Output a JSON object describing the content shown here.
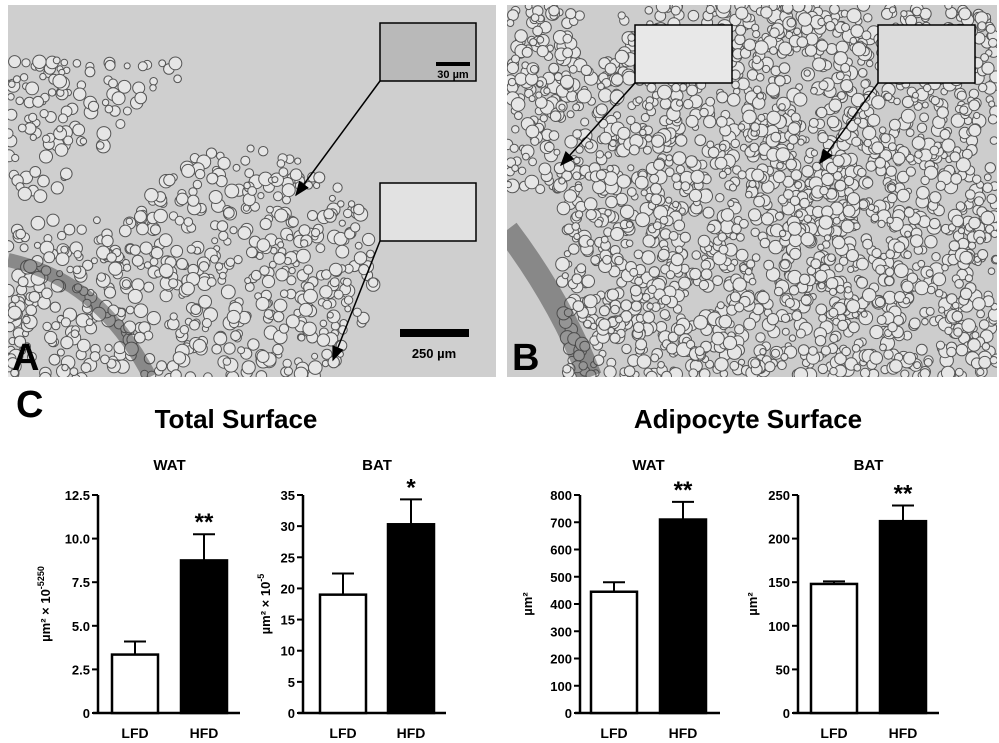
{
  "panels": {
    "a": {
      "label": "A",
      "inset_scale": "30 µm",
      "scale": "250 µm"
    },
    "b": {
      "label": "B"
    },
    "c": {
      "label": "C"
    }
  },
  "groups": {
    "total": "Total Surface",
    "adipocyte": "Adipocyte Surface"
  },
  "colors": {
    "lfd": "#ffffff",
    "hfd": "#000000",
    "micrograph_bg": "#c9c9c9"
  },
  "chart_data": [
    {
      "type": "bar",
      "title": "WAT",
      "group": "Total Surface",
      "categories": [
        "LFD",
        "HFD"
      ],
      "values": [
        3.35,
        8.75
      ],
      "errors": [
        0.75,
        1.5
      ],
      "significance": [
        "",
        "**"
      ],
      "ylabel": "µm² × 10",
      "ylabel_exp": "-5250",
      "ylim": [
        0,
        12.5
      ],
      "yticks": [
        "0",
        "2.5",
        "5.0",
        "7.5",
        "10.0",
        "12.5"
      ]
    },
    {
      "type": "bar",
      "title": "BAT",
      "group": "Total Surface",
      "categories": [
        "LFD",
        "HFD"
      ],
      "values": [
        19,
        30.3
      ],
      "errors": [
        3.4,
        4.0
      ],
      "significance": [
        "",
        "*"
      ],
      "ylabel": "µm² × 10",
      "ylabel_exp": "-5",
      "ylim": [
        0,
        35
      ],
      "yticks": [
        "0",
        "5",
        "10",
        "15",
        "20",
        "25",
        "30",
        "35"
      ]
    },
    {
      "type": "bar",
      "title": "WAT",
      "group": "Adipocyte Surface",
      "categories": [
        "LFD",
        "HFD"
      ],
      "values": [
        445,
        710
      ],
      "errors": [
        35,
        65
      ],
      "significance": [
        "",
        "**"
      ],
      "ylabel": "µm²",
      "ylabel_exp": "",
      "ylim": [
        0,
        800
      ],
      "yticks": [
        "0",
        "100",
        "200",
        "300",
        "400",
        "500",
        "600",
        "700",
        "800"
      ]
    },
    {
      "type": "bar",
      "title": "BAT",
      "group": "Adipocyte Surface",
      "categories": [
        "LFD",
        "HFD"
      ],
      "values": [
        148,
        220
      ],
      "errors": [
        3,
        18
      ],
      "significance": [
        "",
        "**"
      ],
      "ylabel": "µm²",
      "ylabel_exp": "",
      "ylim": [
        0,
        250
      ],
      "yticks": [
        "0",
        "50",
        "100",
        "150",
        "200",
        "250"
      ]
    }
  ]
}
